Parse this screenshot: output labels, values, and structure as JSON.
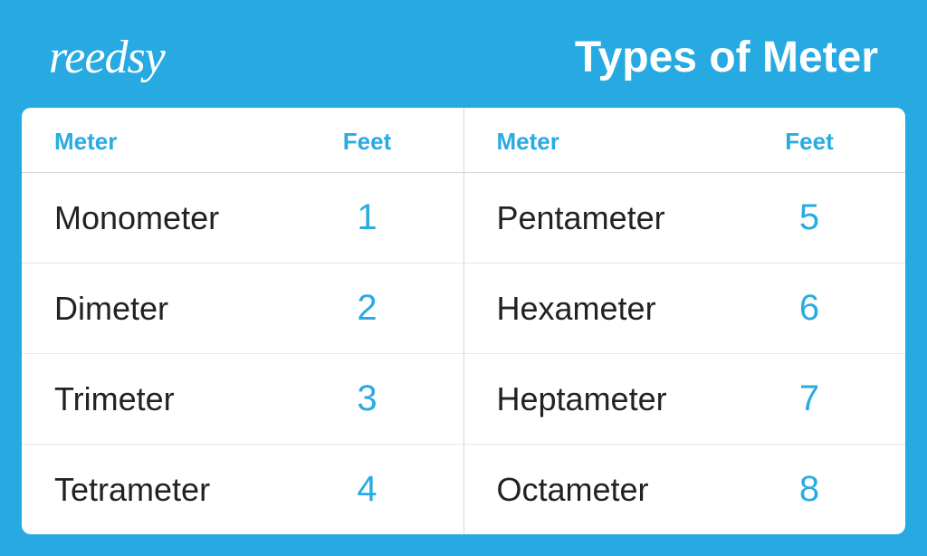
{
  "colors": {
    "background": "#27aae1",
    "table_background": "#ffffff",
    "accent": "#29abe2",
    "text_dark": "#222222",
    "border": "#cfd8dd",
    "row_border": "#e1e7ea"
  },
  "logo_text": "reedsy",
  "title": "Types of Meter",
  "headers": {
    "meter": "Meter",
    "feet": "Feet"
  },
  "left_column": [
    {
      "meter": "Monometer",
      "feet": "1"
    },
    {
      "meter": "Dimeter",
      "feet": "2"
    },
    {
      "meter": "Trimeter",
      "feet": "3"
    },
    {
      "meter": "Tetrameter",
      "feet": "4"
    }
  ],
  "right_column": [
    {
      "meter": "Pentameter",
      "feet": "5"
    },
    {
      "meter": "Hexameter",
      "feet": "6"
    },
    {
      "meter": "Heptameter",
      "feet": "7"
    },
    {
      "meter": "Octameter",
      "feet": "8"
    }
  ]
}
